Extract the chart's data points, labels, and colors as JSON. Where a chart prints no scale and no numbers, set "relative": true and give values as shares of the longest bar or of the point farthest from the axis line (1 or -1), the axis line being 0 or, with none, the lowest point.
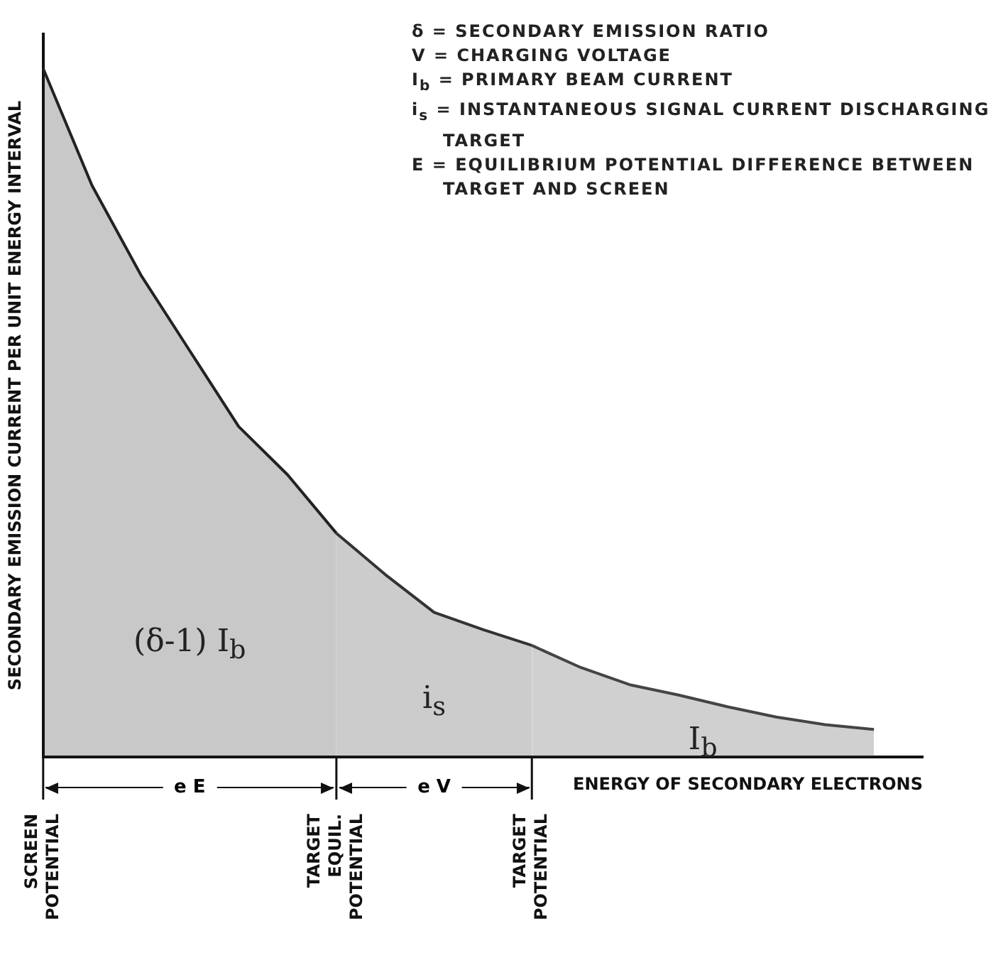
{
  "chart_data": {
    "type": "area",
    "relative": true,
    "xlabel": "ENERGY OF SECONDARY ELECTRONS",
    "ylabel": "SECONDARY EMISSION CURRENT PER UNIT ENERGY INTERVAL",
    "categories": [
      "SCREEN POTENTIAL",
      null,
      null,
      null,
      null,
      null,
      "TARGET EQUIL. POTENTIAL",
      null,
      null,
      null,
      "TARGET POTENTIAL",
      null,
      null,
      null,
      null,
      null,
      null,
      null,
      null
    ],
    "series": [
      {
        "name": "(δ-1) I$_{b}$",
        "color": "#222222",
        "values": [
          1,
          0.83,
          0.7,
          0.59,
          0.48,
          0.41,
          0.325,
          null,
          null,
          null,
          null,
          null,
          null,
          null,
          null,
          null,
          null,
          null,
          null
        ]
      },
      {
        "name": "i$_{s}$",
        "color": "#333333",
        "values": [
          null,
          null,
          null,
          null,
          null,
          null,
          0.325,
          0.265,
          0.21,
          0.185,
          0.162,
          null,
          null,
          null,
          null,
          null,
          null,
          null,
          null
        ]
      },
      {
        "name": "I$_{b}$",
        "color": "#444444",
        "values": [
          null,
          null,
          null,
          null,
          null,
          null,
          null,
          null,
          null,
          null,
          0.162,
          0.13,
          0.105,
          0.09,
          0.073,
          0.058,
          0.047,
          0.04,
          null
        ]
      }
    ],
    "annotations": [
      "δ = SECONDARY EMISSION RATIO",
      "V = CHARGING VOLTAGE",
      "I$_{b}$ = PRIMARY BEAM CURRENT",
      "i$_{s}$ = INSTANTANEOUS SIGNAL CURRENT DISCHARGING TARGET",
      "E = EQUILIBRIUM POTENTIAL DIFFERENCE BETWEEN TARGET AND SCREEN",
      "e E",
      "e V"
    ],
    "grid": false,
    "legend": false,
    "marker": "none",
    "line_style": "solid"
  }
}
